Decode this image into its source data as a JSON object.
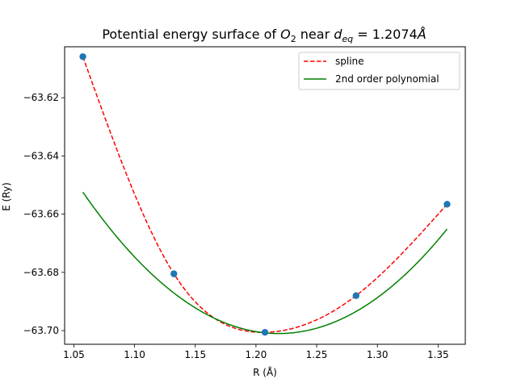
{
  "chart_data": {
    "type": "line",
    "title_main": "Potential energy surface of ",
    "title_mol": "O",
    "title_sub2": "2",
    "title_near": " near ",
    "title_d": "d",
    "title_eq": "eq",
    "title_val": " = 1.2074",
    "title_unit": "Å",
    "xlabel": "R (Å)",
    "ylabel": "E (Ry)",
    "xlim": [
      1.0424,
      1.3724
    ],
    "ylim": [
      -63.7047,
      -63.6025
    ],
    "xticks": [
      1.05,
      1.1,
      1.15,
      1.2,
      1.25,
      1.3,
      1.35
    ],
    "xtick_labels": [
      "1.05",
      "1.10",
      "1.15",
      "1.20",
      "1.25",
      "1.30",
      "1.35"
    ],
    "yticks": [
      -63.62,
      -63.64,
      -63.66,
      -63.68,
      -63.7
    ],
    "ytick_labels": [
      "−63.62",
      "−63.64",
      "−63.66",
      "−63.68",
      "−63.70"
    ],
    "legend_position": "top-right",
    "points": {
      "x": [
        1.0574,
        1.1324,
        1.2074,
        1.2824,
        1.3574
      ],
      "y": [
        -63.6059,
        -63.6805,
        -63.7006,
        -63.688,
        -63.6566
      ],
      "color": "#1f77b4"
    },
    "series": [
      {
        "name": "spline",
        "style": "dashed",
        "color": "#ff0000",
        "kind": "spline"
      },
      {
        "name": "2nd order polynomial",
        "style": "solid",
        "color": "#008000",
        "kind": "quadratic",
        "coefficients": {
          "a": 1.8667,
          "b": -4.55,
          "c": -60.9284
        }
      }
    ]
  }
}
